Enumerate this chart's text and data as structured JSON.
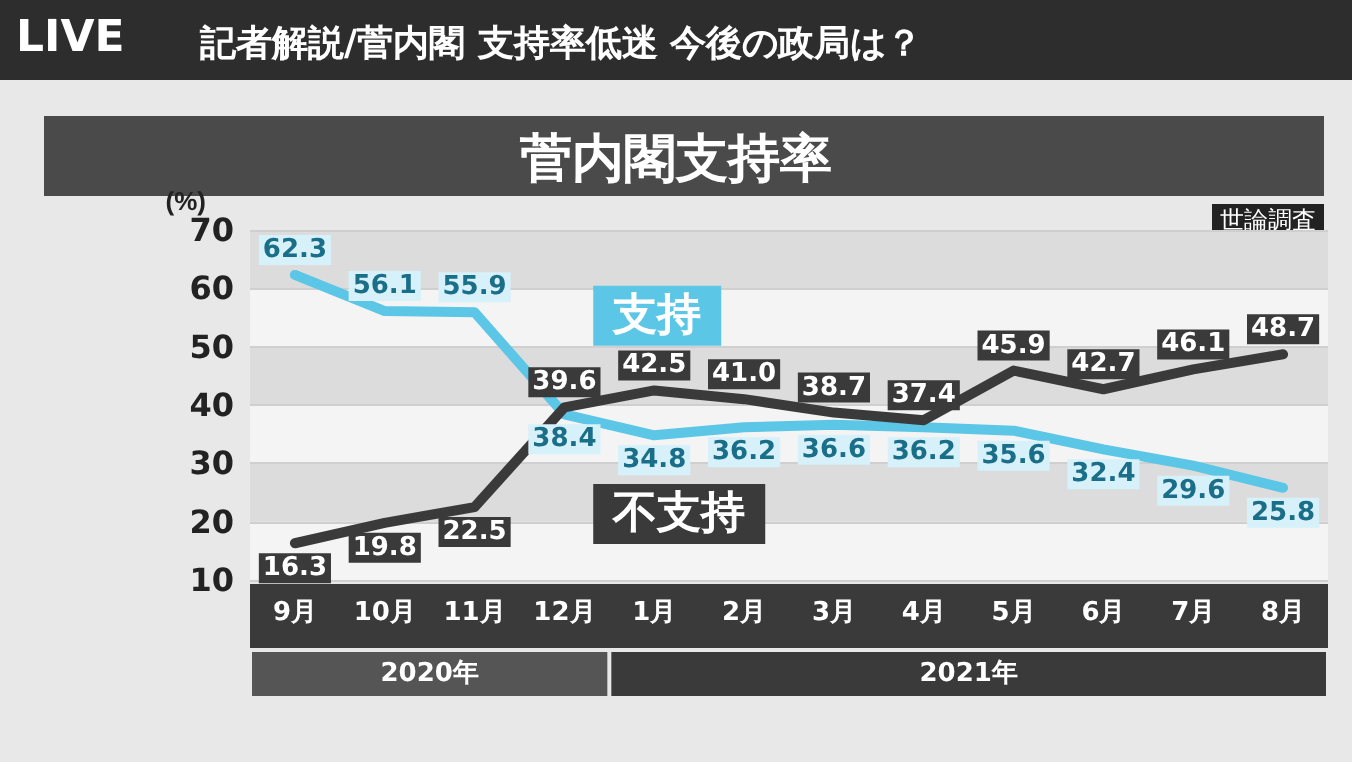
{
  "chart_data": {
    "type": "line",
    "title": "記者解説/菅内閣 支持率低迷 今後の政局は？",
    "subtitle": "菅内閣支持率",
    "ylabel": "(%)",
    "categories": [
      "9月",
      "10月",
      "11月",
      "12月",
      "1月",
      "2月",
      "3月",
      "4月",
      "5月",
      "6月",
      "7月",
      "8月"
    ],
    "series": [
      {
        "name": "支持",
        "color": "#5cc6e6",
        "values": [
          62.3,
          56.1,
          55.9,
          38.4,
          34.8,
          36.2,
          36.6,
          36.2,
          35.6,
          32.4,
          29.6,
          25.8
        ],
        "value_labels": [
          "62.3",
          "56.1",
          "55.9",
          "38.4",
          "34.8",
          "36.2",
          "36.6",
          "36.2",
          "35.6",
          "32.4",
          "29.6",
          "25.8"
        ]
      },
      {
        "name": "不支持",
        "color": "#3a3a3a",
        "values": [
          16.3,
          19.8,
          22.5,
          39.6,
          42.5,
          41.0,
          38.7,
          37.4,
          45.9,
          42.7,
          46.1,
          48.7
        ],
        "value_labels": [
          "16.3",
          "19.8",
          "22.5",
          "39.6",
          "42.5",
          "41.0",
          "38.7",
          "37.4",
          "45.9",
          "42.7",
          "46.1",
          "48.7"
        ]
      }
    ],
    "ylim": [
      10,
      70
    ],
    "yticks": [
      10,
      20,
      30,
      40,
      50,
      60,
      70
    ],
    "grid": "y",
    "legend": "center",
    "marker": "none",
    "line_style": "solid",
    "annotations": [
      "LIVE",
      "世論調査",
      "2020年",
      "2021年"
    ]
  }
}
